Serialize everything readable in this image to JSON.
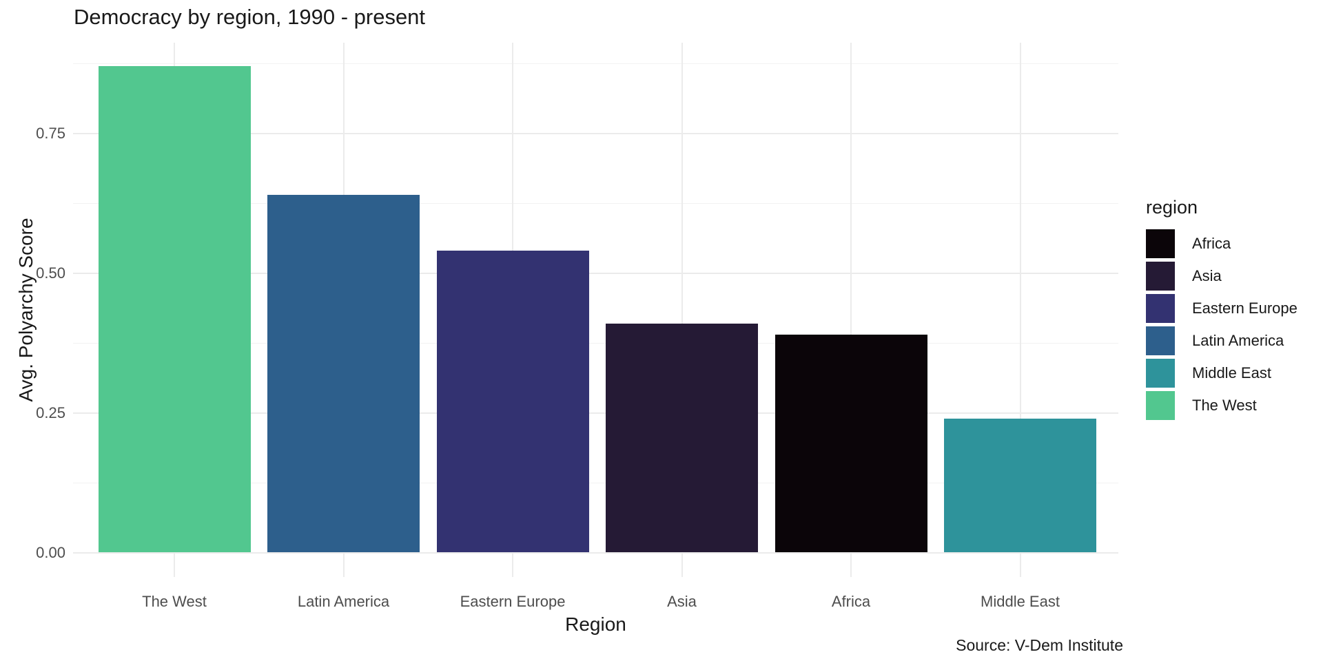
{
  "chart_data": {
    "type": "bar",
    "title": "Democracy by region, 1990 - present",
    "xlabel": "Region",
    "ylabel": "Avg. Polyarchy Score",
    "caption": "Source: V-Dem Institute",
    "categories": [
      "The West",
      "Latin America",
      "Eastern Europe",
      "Asia",
      "Africa",
      "Middle East"
    ],
    "values": [
      0.87,
      0.64,
      0.54,
      0.41,
      0.39,
      0.24
    ],
    "bar_colors": [
      "#52C78F",
      "#2D5F8C",
      "#333271",
      "#251A35",
      "#0B0509",
      "#2E939B"
    ],
    "ylim": [
      0,
      0.91
    ],
    "yticks": [
      0,
      0.25,
      0.5,
      0.75
    ],
    "ytick_labels": [
      "0.00",
      "0.25",
      "0.50",
      "0.75"
    ],
    "yminor_ticks": [
      0.125,
      0.375,
      0.625,
      0.875
    ],
    "grid": "on",
    "legend": {
      "title": "region",
      "position": "right",
      "entries": [
        {
          "label": "Africa",
          "color": "#0B0509"
        },
        {
          "label": "Asia",
          "color": "#251A35"
        },
        {
          "label": "Eastern Europe",
          "color": "#333271"
        },
        {
          "label": "Latin America",
          "color": "#2D5F8C"
        },
        {
          "label": "Middle East",
          "color": "#2E939B"
        },
        {
          "label": "The West",
          "color": "#52C78F"
        }
      ]
    },
    "style": {
      "background": "#ffffff",
      "grid_color": "#ebebeb",
      "tick_text_color": "#4d4d4d",
      "title_text_color": "#191919"
    }
  }
}
